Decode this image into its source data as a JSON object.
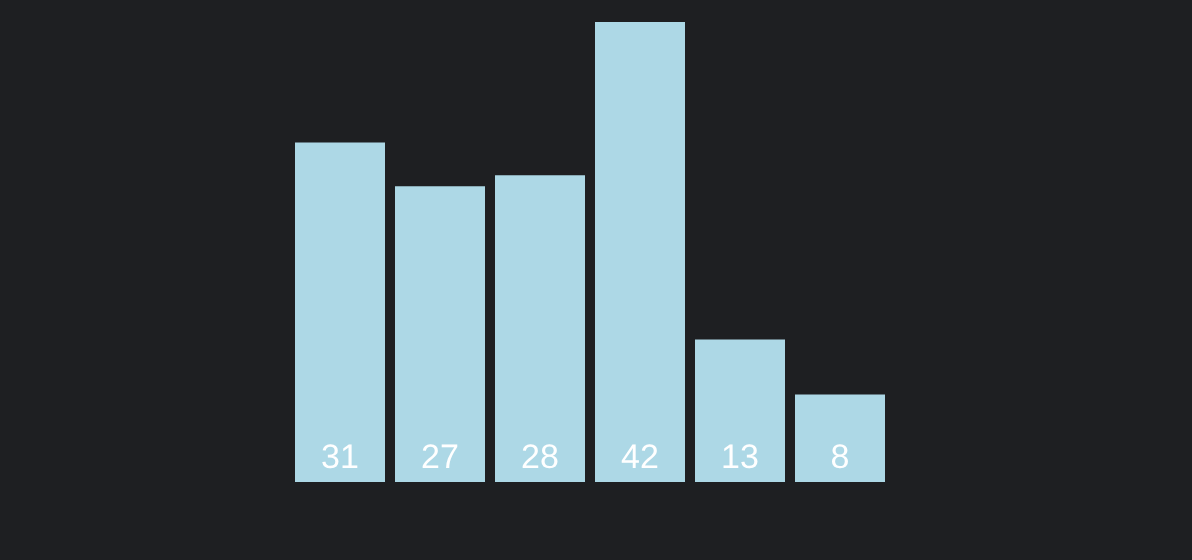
{
  "chart_data": {
    "type": "bar",
    "categories": [
      null,
      null,
      null,
      null,
      null,
      null
    ],
    "values": [
      31,
      27,
      28,
      42,
      13,
      8
    ],
    "color": "#add8e6",
    "data_labels": true
  }
}
